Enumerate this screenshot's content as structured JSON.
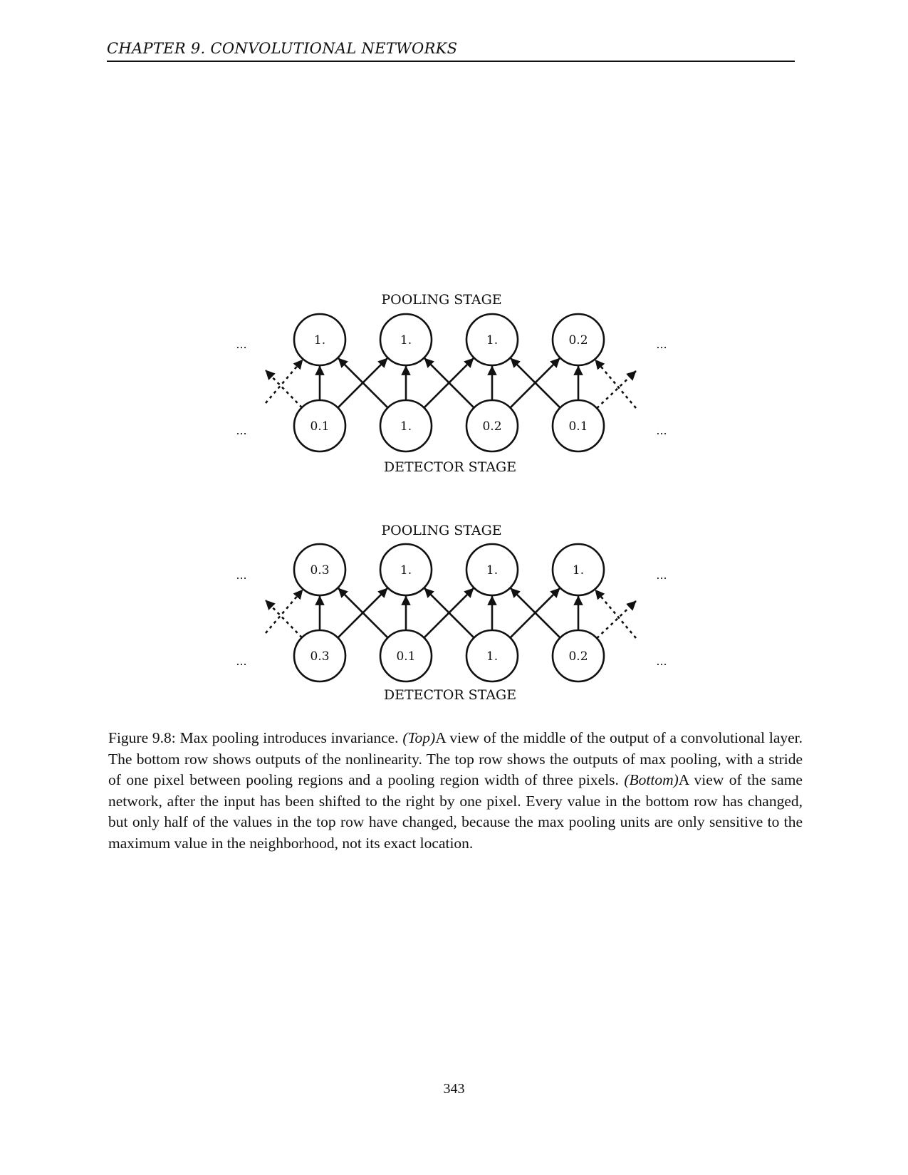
{
  "header": {
    "running_head": "CHAPTER 9.   CONVOLUTIONAL NETWORKS"
  },
  "figure": {
    "ellipsis": "...",
    "panels": [
      {
        "pooling_label": "POOLING STAGE",
        "detector_label": "DETECTOR STAGE",
        "pooling_values": [
          "1.",
          "1.",
          "1.",
          "0.2"
        ],
        "detector_values": [
          "0.1",
          "1.",
          "0.2",
          "0.1"
        ]
      },
      {
        "pooling_label": "POOLING STAGE",
        "detector_label": "DETECTOR STAGE",
        "pooling_values": [
          "0.3",
          "1.",
          "1.",
          "1."
        ],
        "detector_values": [
          "0.3",
          "0.1",
          "1.",
          "0.2"
        ]
      }
    ]
  },
  "caption": {
    "lead": "Figure 9.8: Max pooling introduces invariance. ",
    "top_tag": "(Top)",
    "top_text": "A view of the middle of the output of a convolutional layer. The bottom row shows outputs of the nonlinearity. The top row shows the outputs of max pooling, with a stride of one pixel between pooling regions and a pooling region width of three pixels. ",
    "bottom_tag": "(Bottom)",
    "bottom_text": "A view of the same network, after the input has been shifted to the right by one pixel. Every value in the bottom row has changed, but only half of the values in the top row have changed, because the max pooling units are only sensitive to the maximum value in the neighborhood, not its exact location."
  },
  "footer": {
    "page_number": "343"
  }
}
